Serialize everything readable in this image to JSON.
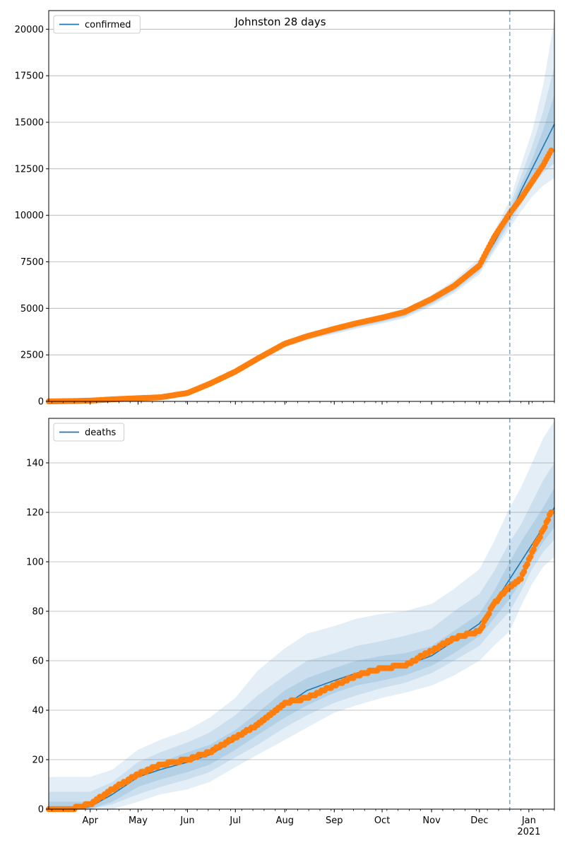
{
  "chart_data": [
    {
      "type": "line",
      "title": "Johnston 28 days",
      "legend": {
        "position": "top-left",
        "entries": [
          "confirmed"
        ]
      },
      "grid": "horizontal",
      "ylim": [
        0,
        21000
      ],
      "yticks": [
        0,
        2500,
        5000,
        7500,
        10000,
        12500,
        15000,
        17500,
        20000
      ],
      "xlim": [
        "2020-03-06",
        "2021-01-17"
      ],
      "forecast_start": "2020-12-20",
      "x": [
        "2020-03-06",
        "2020-03-20",
        "2020-04-01",
        "2020-04-15",
        "2020-05-01",
        "2020-05-15",
        "2020-06-01",
        "2020-06-15",
        "2020-07-01",
        "2020-07-15",
        "2020-08-01",
        "2020-08-15",
        "2020-09-01",
        "2020-09-15",
        "2020-10-01",
        "2020-10-15",
        "2020-11-01",
        "2020-11-15",
        "2020-12-01",
        "2020-12-10",
        "2020-12-20",
        "2020-12-27",
        "2021-01-03",
        "2021-01-10",
        "2021-01-17"
      ],
      "series": [
        {
          "name": "confirmed",
          "role": "model",
          "color": "#1f77b4",
          "values": [
            0,
            10,
            30,
            90,
            150,
            190,
            400,
            900,
            1550,
            2250,
            3050,
            3450,
            3800,
            4100,
            4400,
            4700,
            5400,
            6100,
            7200,
            8500,
            10000,
            11300,
            12500,
            13700,
            14900
          ]
        },
        {
          "role": "observed",
          "color": "#ff7f0e",
          "values": [
            0,
            15,
            40,
            110,
            170,
            220,
            450,
            950,
            1600,
            2300,
            3100,
            3500,
            3900,
            4200,
            4500,
            4800,
            5500,
            6200,
            7300,
            8800,
            10100,
            10900,
            11800,
            12700,
            13800
          ]
        }
      ],
      "bands": [
        {
          "lower": [
            0,
            0,
            10,
            60,
            120,
            160,
            350,
            820,
            1450,
            2120,
            2900,
            3300,
            3620,
            3900,
            4180,
            4460,
            5120,
            5800,
            6820,
            8000,
            9300,
            10200,
            11000,
            11600,
            12000
          ],
          "upper": [
            60,
            80,
            80,
            130,
            200,
            240,
            460,
            1000,
            1680,
            2420,
            3260,
            3680,
            4020,
            4350,
            4660,
            4980,
            5720,
            6500,
            7700,
            9100,
            10800,
            12700,
            14500,
            17000,
            20500
          ]
        },
        {
          "lower": [
            0,
            0,
            15,
            70,
            128,
            168,
            365,
            840,
            1480,
            2160,
            2950,
            3340,
            3670,
            3960,
            4240,
            4530,
            5200,
            5890,
            6940,
            8150,
            9550,
            10600,
            11500,
            12300,
            12800
          ],
          "upper": [
            40,
            60,
            60,
            115,
            180,
            220,
            440,
            970,
            1640,
            2370,
            3200,
            3610,
            3950,
            4270,
            4580,
            4890,
            5620,
            6370,
            7530,
            8900,
            10500,
            12100,
            13700,
            15600,
            18000
          ]
        },
        {
          "lower": [
            0,
            0,
            20,
            78,
            135,
            175,
            378,
            860,
            1510,
            2200,
            3000,
            3390,
            3720,
            4020,
            4310,
            4600,
            5280,
            5980,
            7060,
            8310,
            9750,
            10950,
            11950,
            12850,
            13600
          ],
          "upper": [
            25,
            40,
            45,
            105,
            165,
            205,
            425,
            945,
            1600,
            2320,
            3120,
            3530,
            3870,
            4180,
            4490,
            4800,
            5510,
            6230,
            7350,
            8700,
            10250,
            11650,
            13000,
            14600,
            16500
          ]
        }
      ]
    },
    {
      "type": "line",
      "legend": {
        "position": "top-left",
        "entries": [
          "deaths"
        ]
      },
      "grid": "horizontal",
      "ylim": [
        0,
        158
      ],
      "yticks": [
        0,
        20,
        40,
        60,
        80,
        100,
        120,
        140
      ],
      "xlim": [
        "2020-03-06",
        "2021-01-17"
      ],
      "forecast_start": "2020-12-20",
      "x_tick_labels": [
        "Apr",
        "May",
        "Jun",
        "Jul",
        "Aug",
        "Sep",
        "Oct",
        "Nov",
        "Dec",
        "Jan\n2021"
      ],
      "x": [
        "2020-03-06",
        "2020-03-20",
        "2020-04-01",
        "2020-04-15",
        "2020-05-01",
        "2020-05-15",
        "2020-06-01",
        "2020-06-15",
        "2020-07-01",
        "2020-07-15",
        "2020-08-01",
        "2020-08-15",
        "2020-09-01",
        "2020-09-15",
        "2020-10-01",
        "2020-10-15",
        "2020-11-01",
        "2020-11-15",
        "2020-12-01",
        "2020-12-10",
        "2020-12-20",
        "2020-12-27",
        "2021-01-03",
        "2021-01-10",
        "2021-01-17"
      ],
      "series": [
        {
          "name": "deaths",
          "role": "model",
          "color": "#1f77b4",
          "values": [
            0,
            0,
            1,
            6,
            13,
            16,
            19,
            22,
            28,
            34,
            42,
            48,
            52,
            55,
            57,
            58,
            62,
            68,
            75,
            83,
            93,
            100,
            107,
            114,
            122
          ]
        },
        {
          "role": "observed",
          "color": "#ff7f0e",
          "values": [
            0,
            0,
            2,
            8,
            14,
            18,
            20,
            23,
            29,
            34,
            43,
            45,
            50,
            54,
            57,
            58,
            64,
            69,
            72,
            83,
            90,
            93,
            104,
            113,
            123
          ]
        }
      ],
      "bands": [
        {
          "lower": [
            0,
            0,
            0,
            0,
            3,
            6,
            8,
            11,
            17,
            22,
            28,
            33,
            39,
            42,
            45,
            47,
            50,
            54,
            60,
            66,
            72,
            82,
            91,
            98,
            102
          ],
          "upper": [
            13,
            13,
            13,
            16,
            24,
            28,
            32,
            37,
            45,
            56,
            65,
            71,
            74,
            77,
            79,
            80,
            83,
            89,
            97,
            108,
            122,
            130,
            140,
            150,
            157
          ]
        },
        {
          "lower": [
            0,
            0,
            0,
            2,
            6,
            9,
            12,
            15,
            21,
            26,
            33,
            38,
            43,
            46,
            49,
            51,
            55,
            60,
            66,
            73,
            80,
            88,
            97,
            104,
            109
          ],
          "upper": [
            7,
            7,
            7,
            11,
            19,
            23,
            27,
            31,
            38,
            46,
            54,
            60,
            63,
            66,
            68,
            70,
            73,
            80,
            87,
            96,
            108,
            115,
            124,
            133,
            140
          ]
        },
        {
          "lower": [
            0,
            0,
            0,
            3,
            9,
            12,
            15,
            18,
            24,
            30,
            37,
            42,
            47,
            50,
            52,
            54,
            58,
            63,
            70,
            77,
            85,
            92,
            101,
            108,
            114
          ],
          "upper": [
            3,
            3,
            3,
            8,
            16,
            19,
            23,
            26,
            32,
            39,
            48,
            53,
            57,
            60,
            62,
            63,
            66,
            72,
            79,
            88,
            100,
            108,
            115,
            122,
            130
          ]
        }
      ]
    }
  ]
}
